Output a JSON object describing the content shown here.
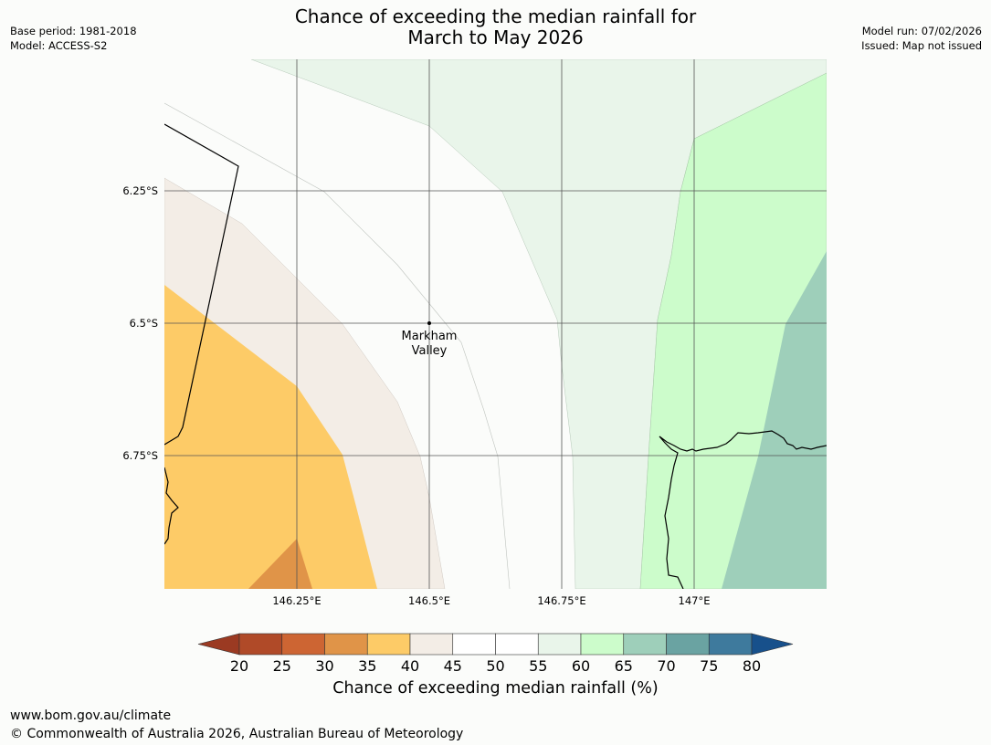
{
  "header": {
    "title_line1": "Chance of exceeding the median rainfall for",
    "title_line2": "March to May 2026",
    "base_period": "Base period: 1981-2018",
    "model": "Model: ACCESS-S2",
    "model_run": "Model run: 07/02/2026",
    "issued": "Issued: Map not issued"
  },
  "map": {
    "lat_labels": [
      "6.25°S",
      "6.5°S",
      "6.75°S"
    ],
    "lon_labels": [
      "146.25°E",
      "146.5°E",
      "146.75°E",
      "147°E"
    ],
    "place": {
      "name_line1": "Markham",
      "name_line2": "Valley"
    },
    "lon_range": [
      146.0,
      147.25
    ],
    "lat_range": [
      -6.0,
      -7.0
    ]
  },
  "colorbar": {
    "title": "Chance of exceeding median rainfall (%)",
    "ticks": [
      "20",
      "25",
      "30",
      "35",
      "40",
      "45",
      "50",
      "55",
      "60",
      "65",
      "70",
      "75",
      "80"
    ],
    "colors": [
      "#9b3a22",
      "#b04a28",
      "#cd6533",
      "#e09448",
      "#fdcb67",
      "#f3ede6",
      "#ffffff",
      "#ffffff",
      "#e9f5ea",
      "#ccfccb",
      "#9ecfba",
      "#6aa3a2",
      "#3e7a9d",
      "#17508b"
    ]
  },
  "footer": {
    "url": "www.bom.gov.au/climate",
    "copyright": "© Commonwealth of Australia 2026, Australian Bureau of Meteorology"
  }
}
